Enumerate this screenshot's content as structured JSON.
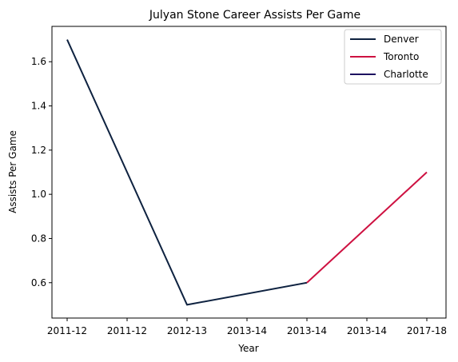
{
  "chart_data": {
    "type": "line",
    "title": "Julyan Stone Career Assists Per Game",
    "xlabel": "Year",
    "ylabel": "Assists Per Game",
    "categories": [
      "2011-12",
      "2011-12",
      "2012-13",
      "2013-14",
      "2013-14",
      "2013-14",
      "2017-18"
    ],
    "ylim": [
      0.44,
      1.76
    ],
    "yticks": [
      0.6,
      0.8,
      1.0,
      1.2,
      1.4,
      1.6
    ],
    "ytick_labels": [
      "0.6",
      "0.8",
      "1.0",
      "1.2",
      "1.4",
      "1.6"
    ],
    "grid": false,
    "legend_position": "top-right",
    "series": [
      {
        "name": "Denver",
        "color": "#0e2240",
        "points": [
          [
            0,
            1.7
          ],
          [
            2,
            0.5
          ],
          [
            4,
            0.6
          ]
        ]
      },
      {
        "name": "Toronto",
        "color": "#ce1141",
        "points": [
          [
            4,
            0.6
          ],
          [
            6,
            1.1
          ]
        ]
      },
      {
        "name": "Charlotte",
        "color": "#1d1160",
        "points": []
      }
    ]
  }
}
